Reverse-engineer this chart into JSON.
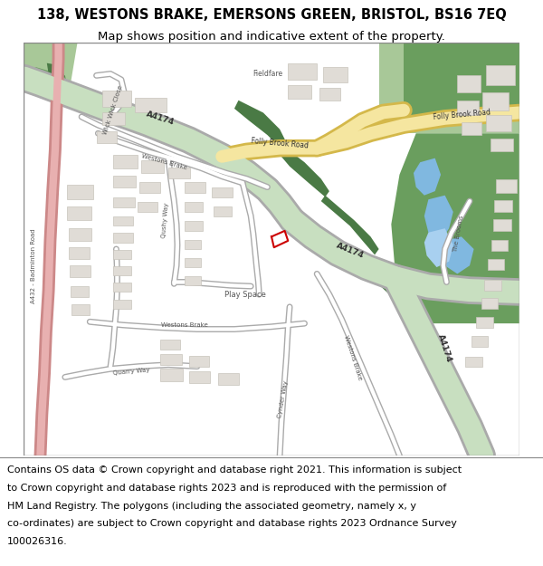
{
  "title_line1": "138, WESTONS BRAKE, EMERSONS GREEN, BRISTOL, BS16 7EQ",
  "title_line2": "Map shows position and indicative extent of the property.",
  "copyright_text": "Contains OS data © Crown copyright and database right 2021. This information is subject to Crown copyright and database rights 2023 and is reproduced with the permission of\nHM Land Registry. The polygons (including the associated geometry, namely x, y\nco-ordinates) are subject to Crown copyright and database rights 2023 Ordnance Survey\n100026316.",
  "title_fontsize": 10.5,
  "subtitle_fontsize": 9.5,
  "copyright_fontsize": 8.0,
  "fig_width": 6.0,
  "fig_height": 6.25,
  "map_bg": "#f2f0ed",
  "bg_white": "#ffffff",
  "green_dark": "#4a7a45",
  "green_med": "#6a9e5e",
  "green_light": "#a8c898",
  "green_pale": "#c8dfc0",
  "yellow_road": "#f5e6a0",
  "yellow_road_border": "#d4b84a",
  "pink_road": "#e8b0b0",
  "pink_road_border": "#cc8888",
  "building_fill": "#e0dcd6",
  "building_edge": "#c8c4bc",
  "water_blue": "#80b8e0",
  "water_blue2": "#a8d0f0",
  "text_dark": "#333333",
  "text_black": "#000000",
  "highlight_red": "#cc0000",
  "border_gray": "#888888",
  "copyright_bg": "#ffffff",
  "title_bg": "#ffffff"
}
